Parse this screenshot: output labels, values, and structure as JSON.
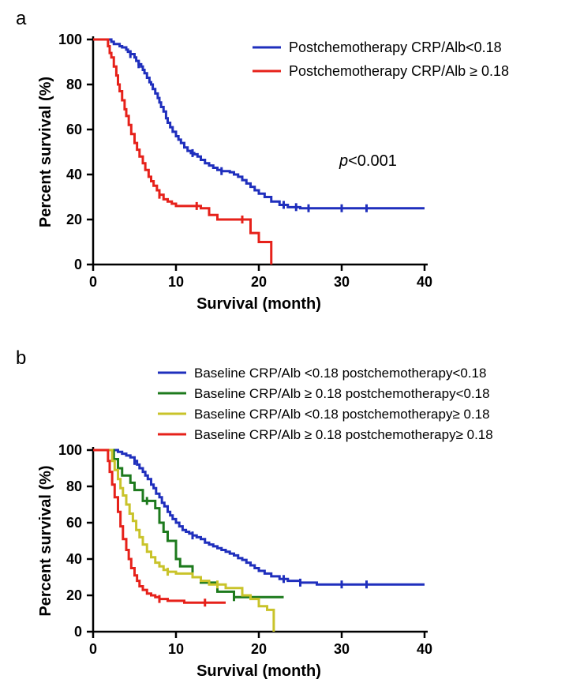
{
  "panel_a": {
    "label": "a",
    "type": "kaplan-meier",
    "xlabel": "Survival (month)",
    "ylabel": "Percent survival (%)",
    "xlim": [
      0,
      40
    ],
    "xtick_step": 10,
    "ylim": [
      0,
      100
    ],
    "ytick_step": 20,
    "axis_linewidth": 2.5,
    "tick_len": 8,
    "p_value": "p<0.001",
    "title_fontsize": 20,
    "tick_fontsize": 18,
    "legend_fontsize": 18,
    "background_color": "#ffffff",
    "series": [
      {
        "name": "Postchemotherapy CRP/Alb<0.18",
        "color": "#1f2fbd",
        "linewidth": 3,
        "points": [
          [
            0,
            100
          ],
          [
            2,
            100
          ],
          [
            2.2,
            99
          ],
          [
            2.5,
            98
          ],
          [
            3,
            98
          ],
          [
            3.2,
            97
          ],
          [
            3.5,
            96.5
          ],
          [
            4,
            95.5
          ],
          [
            4.2,
            94.5
          ],
          [
            4.5,
            93.5
          ],
          [
            5,
            92
          ],
          [
            5.2,
            90.5
          ],
          [
            5.5,
            89
          ],
          [
            5.8,
            88
          ],
          [
            6,
            86.5
          ],
          [
            6.2,
            85
          ],
          [
            6.5,
            83
          ],
          [
            6.8,
            81
          ],
          [
            7,
            80
          ],
          [
            7.2,
            78
          ],
          [
            7.5,
            76
          ],
          [
            7.8,
            74
          ],
          [
            8,
            72
          ],
          [
            8.2,
            70
          ],
          [
            8.5,
            68
          ],
          [
            8.8,
            65
          ],
          [
            9,
            63
          ],
          [
            9.3,
            61
          ],
          [
            9.6,
            59
          ],
          [
            10,
            57
          ],
          [
            10.3,
            55.5
          ],
          [
            10.6,
            54
          ],
          [
            11,
            52
          ],
          [
            11.4,
            50.5
          ],
          [
            11.8,
            49.5
          ],
          [
            12.2,
            49
          ],
          [
            12.6,
            48
          ],
          [
            13,
            46.5
          ],
          [
            13.5,
            45
          ],
          [
            14,
            44
          ],
          [
            14.5,
            43
          ],
          [
            15,
            42
          ],
          [
            15.5,
            41.5
          ],
          [
            16,
            41.5
          ],
          [
            16.5,
            41
          ],
          [
            17,
            40
          ],
          [
            17.5,
            39
          ],
          [
            18,
            37.5
          ],
          [
            18.5,
            36
          ],
          [
            19,
            34.5
          ],
          [
            19.5,
            33
          ],
          [
            20,
            31.5
          ],
          [
            20.7,
            30
          ],
          [
            21.5,
            28
          ],
          [
            22.5,
            26.5
          ],
          [
            23.5,
            25.5
          ],
          [
            25,
            25
          ],
          [
            27,
            25
          ],
          [
            30,
            25
          ],
          [
            34,
            25
          ],
          [
            40,
            25
          ]
        ],
        "censor_ticks": [
          4.5,
          5.5,
          12,
          15.5,
          23,
          24.5,
          26,
          30,
          33
        ]
      },
      {
        "name": "Postchemotherapy CRP/Alb ≥ 0.18",
        "color": "#e6211a",
        "linewidth": 3,
        "points": [
          [
            0,
            100
          ],
          [
            1.5,
            100
          ],
          [
            1.8,
            97
          ],
          [
            2,
            94
          ],
          [
            2.2,
            92
          ],
          [
            2.5,
            88
          ],
          [
            2.8,
            84
          ],
          [
            3,
            80
          ],
          [
            3.2,
            77
          ],
          [
            3.5,
            73
          ],
          [
            3.8,
            69
          ],
          [
            4,
            66
          ],
          [
            4.3,
            62
          ],
          [
            4.6,
            58
          ],
          [
            5,
            54
          ],
          [
            5.3,
            51
          ],
          [
            5.6,
            48
          ],
          [
            6,
            45
          ],
          [
            6.3,
            42
          ],
          [
            6.7,
            39
          ],
          [
            7,
            37
          ],
          [
            7.3,
            35
          ],
          [
            7.7,
            33
          ],
          [
            8,
            31
          ],
          [
            8.5,
            29
          ],
          [
            9,
            28
          ],
          [
            9.5,
            27
          ],
          [
            10,
            26
          ],
          [
            10.5,
            26
          ],
          [
            11,
            26
          ],
          [
            12,
            26
          ],
          [
            13,
            25
          ],
          [
            14,
            22
          ],
          [
            15,
            20
          ],
          [
            16,
            20
          ],
          [
            17,
            20
          ],
          [
            18,
            20
          ],
          [
            19,
            14
          ],
          [
            20,
            10
          ],
          [
            21,
            10
          ],
          [
            21.5,
            0
          ]
        ],
        "censor_ticks": [
          8,
          12.5,
          18
        ]
      }
    ]
  },
  "panel_b": {
    "label": "b",
    "type": "kaplan-meier",
    "xlabel": "Survival (month)",
    "ylabel": "Percent survival (%)",
    "xlim": [
      0,
      40
    ],
    "xtick_step": 10,
    "ylim": [
      0,
      100
    ],
    "ytick_step": 20,
    "axis_linewidth": 2.5,
    "tick_len": 8,
    "title_fontsize": 20,
    "tick_fontsize": 18,
    "legend_fontsize": 17,
    "background_color": "#ffffff",
    "series": [
      {
        "name": "Baseline CRP/Alb <0.18 postchemotherapy<0.18",
        "color": "#1f2fbd",
        "linewidth": 3,
        "points": [
          [
            0,
            100
          ],
          [
            2.5,
            100
          ],
          [
            3,
            99
          ],
          [
            3.5,
            98
          ],
          [
            4,
            97
          ],
          [
            4.5,
            96
          ],
          [
            5,
            94
          ],
          [
            5.3,
            92
          ],
          [
            5.6,
            90
          ],
          [
            6,
            88
          ],
          [
            6.3,
            86
          ],
          [
            6.6,
            84
          ],
          [
            7,
            81
          ],
          [
            7.3,
            79
          ],
          [
            7.6,
            76
          ],
          [
            8,
            74
          ],
          [
            8.3,
            71
          ],
          [
            8.6,
            69
          ],
          [
            9,
            66
          ],
          [
            9.3,
            64
          ],
          [
            9.6,
            62
          ],
          [
            10,
            60
          ],
          [
            10.4,
            58
          ],
          [
            10.8,
            56
          ],
          [
            11.2,
            55
          ],
          [
            11.6,
            54
          ],
          [
            12,
            53
          ],
          [
            12.5,
            52
          ],
          [
            13,
            51
          ],
          [
            13.5,
            49
          ],
          [
            14,
            48
          ],
          [
            14.5,
            47
          ],
          [
            15,
            46
          ],
          [
            15.5,
            45
          ],
          [
            16,
            44
          ],
          [
            16.5,
            43
          ],
          [
            17,
            42
          ],
          [
            17.5,
            40.5
          ],
          [
            18,
            39.5
          ],
          [
            18.5,
            38
          ],
          [
            19,
            36.5
          ],
          [
            19.5,
            35
          ],
          [
            20,
            33.5
          ],
          [
            20.7,
            32
          ],
          [
            21.5,
            30.5
          ],
          [
            22.5,
            29
          ],
          [
            23.5,
            28
          ],
          [
            25,
            27
          ],
          [
            27,
            26
          ],
          [
            30,
            26
          ],
          [
            34,
            26
          ],
          [
            40,
            26
          ]
        ],
        "censor_ticks": [
          5,
          12,
          23,
          25,
          30,
          33
        ]
      },
      {
        "name": "Baseline  CRP/Alb ≥ 0.18 postchemotherapy<0.18",
        "color": "#1d7a1d",
        "linewidth": 3,
        "points": [
          [
            0,
            100
          ],
          [
            2,
            100
          ],
          [
            2.5,
            95
          ],
          [
            3,
            90
          ],
          [
            3.5,
            86
          ],
          [
            4,
            86
          ],
          [
            4.5,
            82
          ],
          [
            5,
            78
          ],
          [
            5.5,
            78
          ],
          [
            6,
            72
          ],
          [
            6.5,
            72
          ],
          [
            7,
            72
          ],
          [
            7.5,
            68
          ],
          [
            8,
            60
          ],
          [
            8.5,
            55
          ],
          [
            9,
            50
          ],
          [
            9.5,
            50
          ],
          [
            10,
            40
          ],
          [
            10.5,
            36
          ],
          [
            11,
            36
          ],
          [
            12,
            30
          ],
          [
            13,
            27
          ],
          [
            14,
            27
          ],
          [
            15,
            22
          ],
          [
            16,
            22
          ],
          [
            17,
            19
          ],
          [
            18,
            19
          ],
          [
            20,
            19
          ],
          [
            23,
            19
          ]
        ],
        "censor_ticks": [
          6.5,
          17
        ]
      },
      {
        "name": "Baseline  CRP/Alb <0.18 postchemotherapy≥ 0.18",
        "color": "#c9c32a",
        "linewidth": 3,
        "points": [
          [
            0,
            100
          ],
          [
            2,
            100
          ],
          [
            2.3,
            94
          ],
          [
            2.6,
            89
          ],
          [
            3,
            84
          ],
          [
            3.3,
            79
          ],
          [
            3.6,
            75
          ],
          [
            4,
            70
          ],
          [
            4.4,
            65
          ],
          [
            4.8,
            61
          ],
          [
            5.2,
            56
          ],
          [
            5.6,
            52
          ],
          [
            6,
            48
          ],
          [
            6.5,
            44
          ],
          [
            7,
            41
          ],
          [
            7.5,
            38
          ],
          [
            8,
            36
          ],
          [
            8.5,
            34
          ],
          [
            9,
            33
          ],
          [
            10,
            32
          ],
          [
            11,
            32
          ],
          [
            12,
            30
          ],
          [
            13,
            28
          ],
          [
            14,
            26
          ],
          [
            15,
            26
          ],
          [
            16,
            24
          ],
          [
            17,
            24
          ],
          [
            18,
            20
          ],
          [
            19,
            18
          ],
          [
            20,
            14
          ],
          [
            21,
            12
          ],
          [
            21.8,
            0
          ]
        ],
        "censor_ticks": [
          9,
          15
        ]
      },
      {
        "name": "Baseline CRP/Alb ≥ 0.18 postchemotherapy≥ 0.18",
        "color": "#e6211a",
        "linewidth": 3,
        "points": [
          [
            0,
            100
          ],
          [
            1.5,
            100
          ],
          [
            1.8,
            94
          ],
          [
            2,
            88
          ],
          [
            2.3,
            81
          ],
          [
            2.6,
            74
          ],
          [
            3,
            66
          ],
          [
            3.3,
            58
          ],
          [
            3.6,
            51
          ],
          [
            4,
            45
          ],
          [
            4.3,
            40
          ],
          [
            4.6,
            35
          ],
          [
            5,
            31
          ],
          [
            5.3,
            28
          ],
          [
            5.6,
            25
          ],
          [
            6,
            23
          ],
          [
            6.5,
            21
          ],
          [
            7,
            20
          ],
          [
            7.5,
            19
          ],
          [
            8,
            18
          ],
          [
            9,
            17
          ],
          [
            10,
            17
          ],
          [
            11,
            16
          ],
          [
            12,
            16
          ],
          [
            13,
            16
          ],
          [
            14,
            16
          ],
          [
            15,
            16
          ],
          [
            16,
            16
          ]
        ],
        "censor_ticks": [
          8,
          13.5
        ]
      }
    ]
  }
}
